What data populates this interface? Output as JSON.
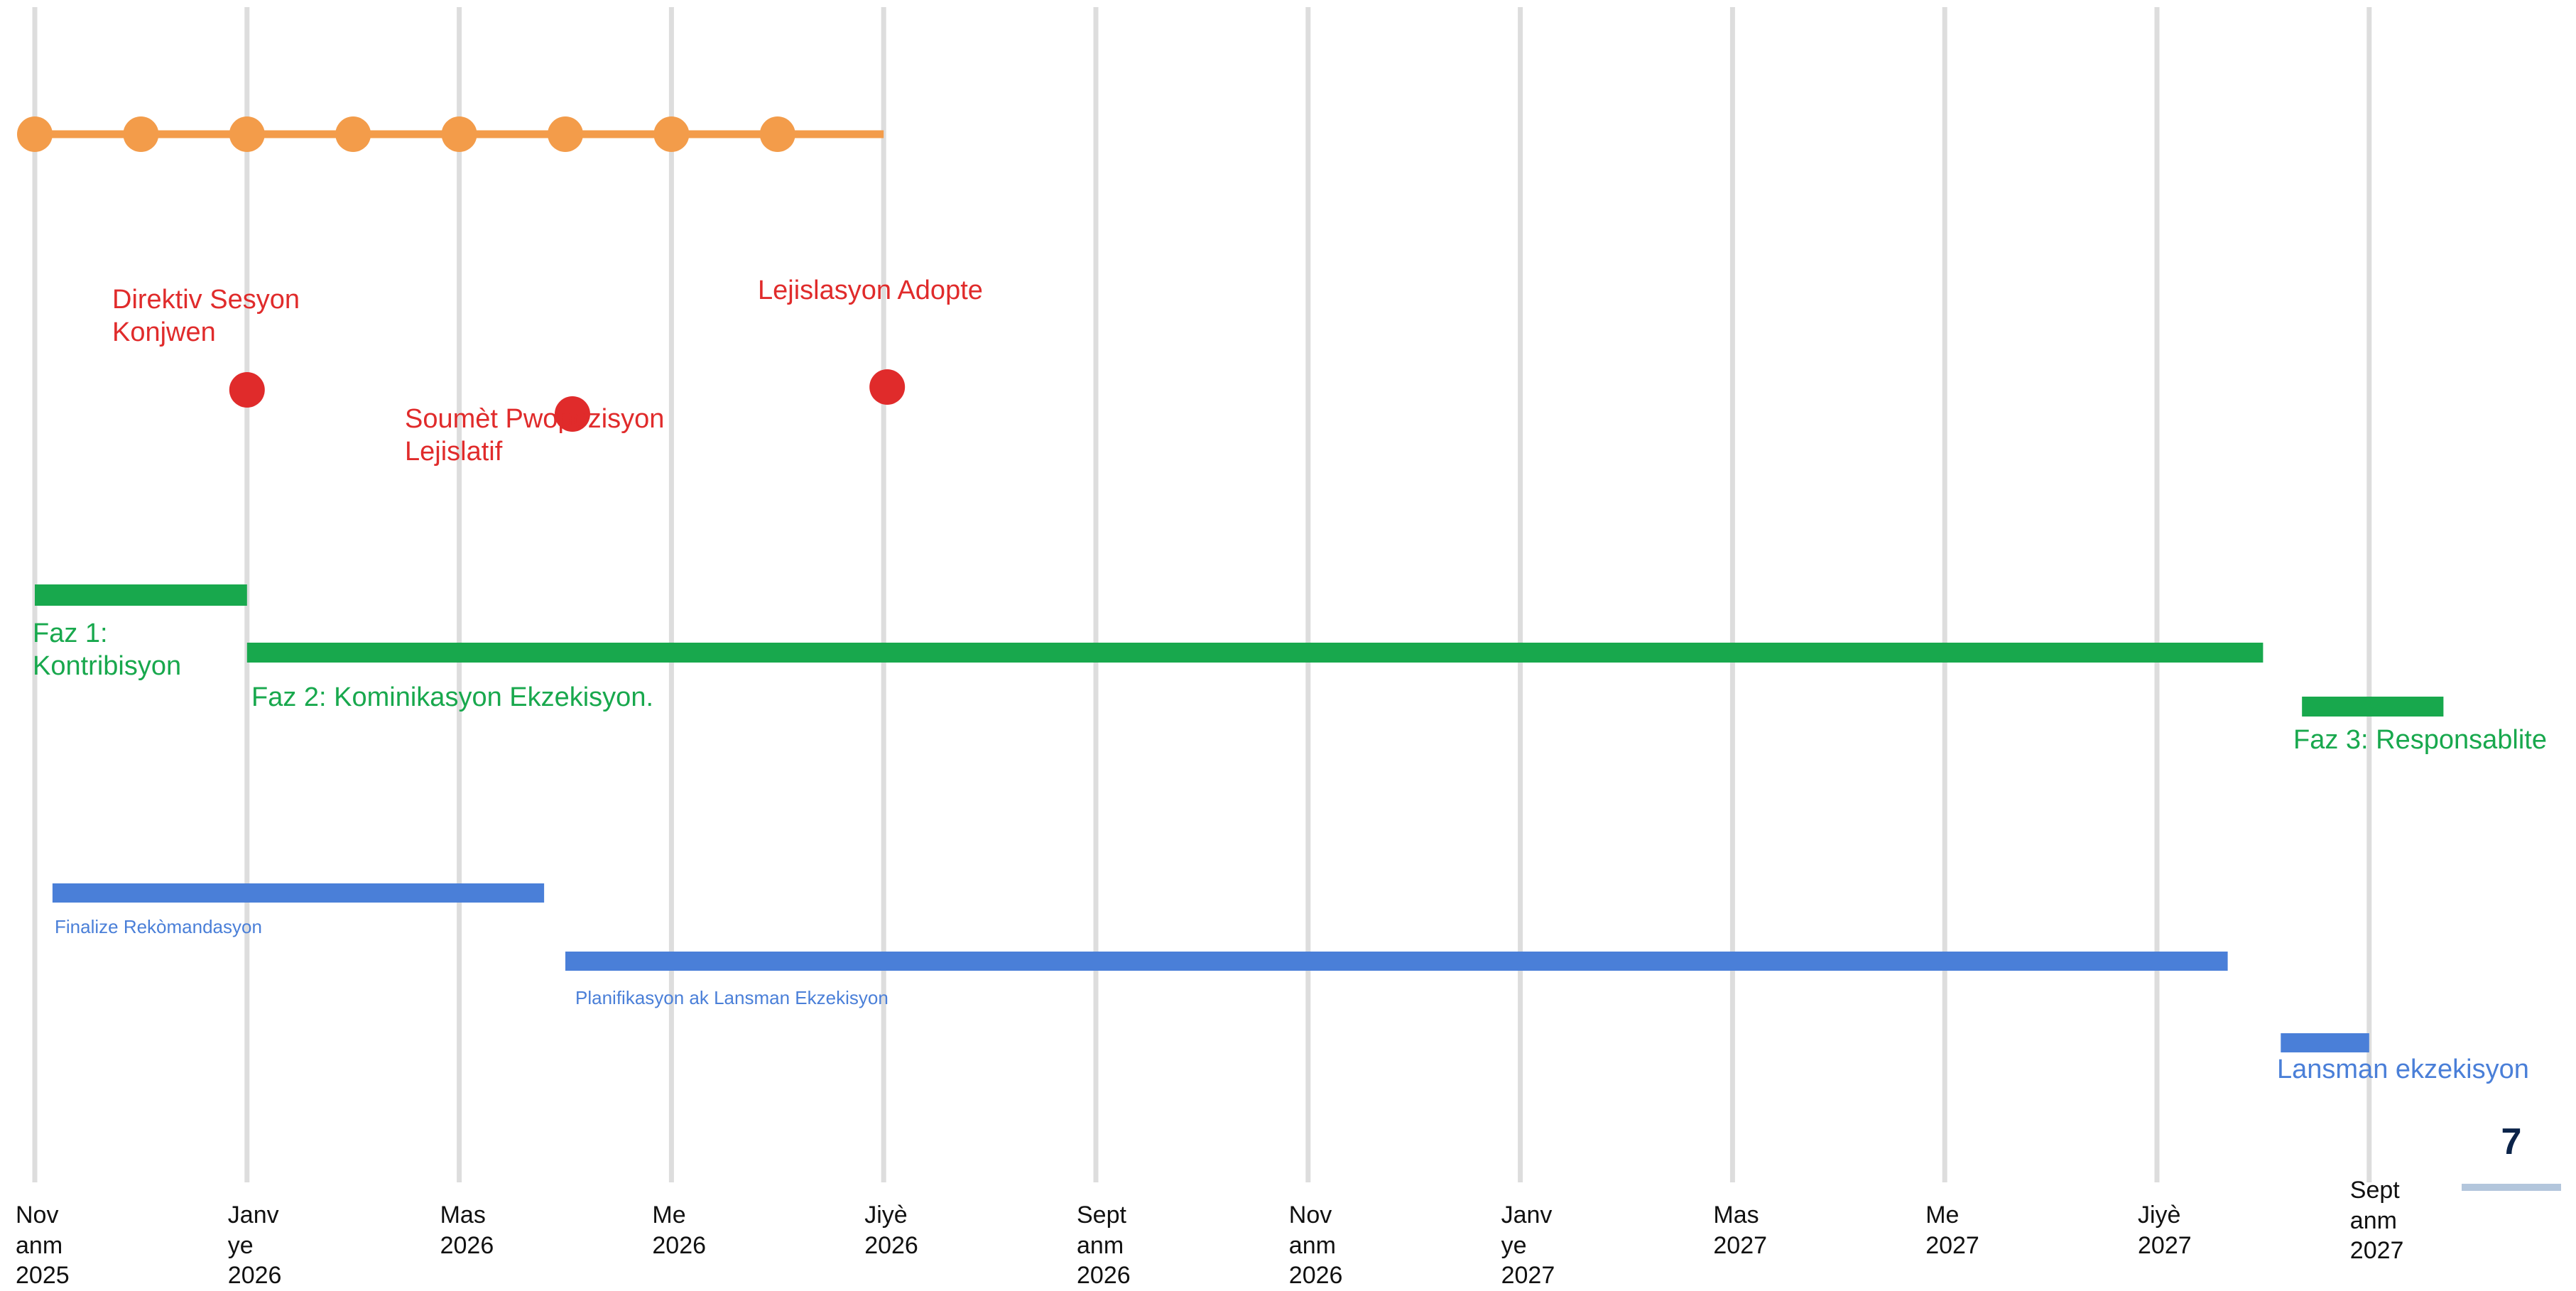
{
  "colors": {
    "gridline": "#dddddd",
    "cadence": "#f39c4a",
    "milestone": "#e02b2b",
    "phase": "#18a84d",
    "task": "#4a7fd8",
    "page_number": "#0b2349"
  },
  "axis": {
    "ticks": [
      {
        "date": "2025-11",
        "label": "Nov\nanm\n2025"
      },
      {
        "date": "2026-01",
        "label": "Janv\nye\n2026"
      },
      {
        "date": "2026-03",
        "label": "Mas\n2026"
      },
      {
        "date": "2026-05",
        "label": "Me\n2026"
      },
      {
        "date": "2026-07",
        "label": "Jiyè\n2026"
      },
      {
        "date": "2026-09",
        "label": "Sept\nanm\n2026"
      },
      {
        "date": "2026-11",
        "label": "Nov\nanm\n2026"
      },
      {
        "date": "2027-01",
        "label": "Janv\nye\n2027"
      },
      {
        "date": "2027-03",
        "label": "Mas\n2027"
      },
      {
        "date": "2027-05",
        "label": "Me\n2027"
      },
      {
        "date": "2027-07",
        "label": "Jiyè\n2027"
      },
      {
        "date": "2027-09",
        "label": "Sept\nanm\n2027"
      }
    ]
  },
  "cadence": {
    "points": [
      "2025-11-01",
      "2025-12-01",
      "2026-01-01",
      "2026-02-01",
      "2026-03-01",
      "2026-04-01",
      "2026-05-01",
      "2026-06-01"
    ],
    "end": "2026-07-01"
  },
  "milestones": [
    {
      "date": "2026-01-01",
      "label": "Direktiv Sesyon\nKonjwen"
    },
    {
      "date": "2026-04-03",
      "label": "Soumèt Pwopozisyon\nLejislatif"
    },
    {
      "date": "2026-07-02",
      "label": "Lejislasyon Adopte"
    }
  ],
  "phases": [
    {
      "start": "2025-11-01",
      "end": "2025-12-31",
      "label": "Faz 1:\nKontribisyon"
    },
    {
      "start": "2026-01-01",
      "end": "2027-08-01",
      "label": "Faz 2: Kominikasyon Ekzekisyon."
    },
    {
      "start": "2027-08-12",
      "end": "2027-09-22",
      "label": "Faz 3: Responsablite"
    }
  ],
  "tasks": [
    {
      "start": "2025-11-06",
      "end": "2026-03-25",
      "label": "Finalize Rekòmandasyon",
      "size": "small"
    },
    {
      "start": "2026-04-01",
      "end": "2027-07-21",
      "label": "Planifikasyon ak Lansman Ekzekisyon",
      "size": "small"
    },
    {
      "start": "2027-08-06",
      "end": "2027-09-01",
      "label": "Lansman ekzekisyon",
      "size": "large"
    }
  ],
  "page_number": "7"
}
